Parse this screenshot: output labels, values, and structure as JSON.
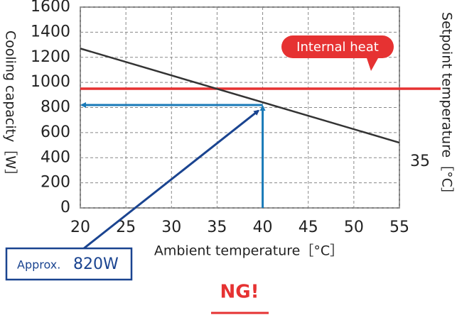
{
  "chart_data": {
    "type": "line",
    "xlabel": "Ambient temperature［°C］",
    "ylabel": "Cooling capacity［W］",
    "y2label": "Setpoint temperature［°C］",
    "setpoint": 35,
    "x": [
      20,
      55
    ],
    "values": [
      1270,
      520
    ],
    "color": "#333333",
    "xlim": [
      20,
      55
    ],
    "xticks": [
      20,
      25,
      30,
      35,
      40,
      45,
      50,
      55
    ],
    "ylim": [
      0,
      1600
    ],
    "yticks": [
      0,
      200,
      400,
      600,
      800,
      1000,
      1200,
      1400,
      1600
    ],
    "grid": true,
    "annotations": [
      {
        "text": "Internal heat",
        "value": 950,
        "color": "#e63232"
      },
      {
        "text": "Approx.",
        "label": "820W",
        "x": 40,
        "value": 820,
        "color": "#1a7ab8"
      }
    ],
    "verdict": "NG!"
  }
}
